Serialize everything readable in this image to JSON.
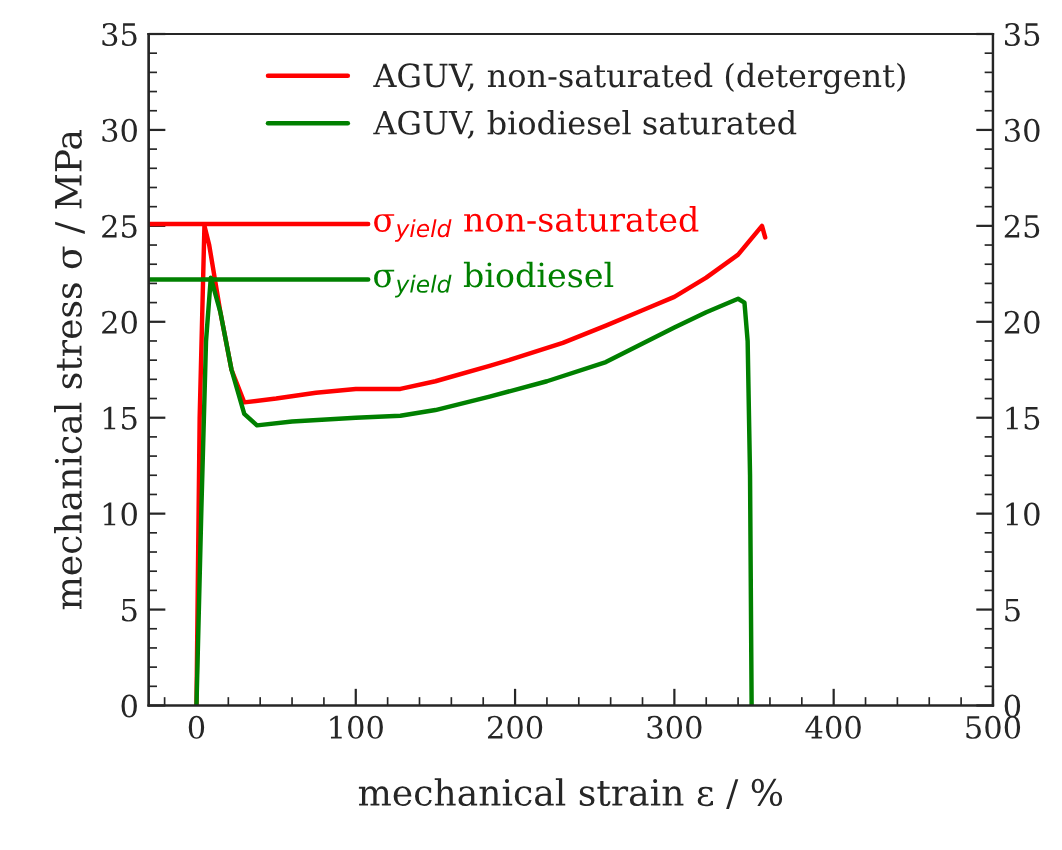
{
  "chart_data": {
    "type": "line",
    "xlabel": "mechanical strain ε / %",
    "ylabel": "mechanical stress σ / MPa",
    "xlim": [
      -30,
      500
    ],
    "xticks": [
      0,
      100,
      200,
      300,
      400,
      500
    ],
    "ylim": [
      0,
      35
    ],
    "yticks": [
      0,
      5,
      10,
      15,
      20,
      25,
      30,
      35
    ],
    "y2lim": [
      0,
      35
    ],
    "y2ticks": [
      0,
      5,
      10,
      15,
      20,
      25,
      30,
      35
    ],
    "grid": false,
    "legend": "top",
    "marker": "none",
    "line_style": "solid",
    "series": [
      {
        "name": "AGUV, non-saturated (detergent)",
        "color": "#ff0000",
        "x": [
          0,
          2,
          5,
          8,
          15,
          22,
          30,
          50,
          75,
          100,
          128,
          150,
          184,
          200,
          230,
          257,
          280,
          300,
          320,
          340,
          355,
          357
        ],
        "values": [
          0,
          15,
          25,
          24,
          20.5,
          17.5,
          15.8,
          16.0,
          16.3,
          16.5,
          16.5,
          16.9,
          17.7,
          18.1,
          18.9,
          19.8,
          20.6,
          21.3,
          22.3,
          23.5,
          25,
          24.4
        ]
      },
      {
        "name": "AGUV, biodiesel saturated",
        "color": "#008000",
        "x": [
          0,
          3,
          6,
          9,
          15,
          22,
          30,
          38,
          60,
          100,
          128,
          150,
          184,
          220,
          257,
          300,
          320,
          340,
          344,
          346,
          347.5,
          348.5
        ],
        "values": [
          0,
          10,
          19,
          22.3,
          20.5,
          17.5,
          15.2,
          14.6,
          14.8,
          15.0,
          15.1,
          15.4,
          16.1,
          16.9,
          17.9,
          19.7,
          20.5,
          21.2,
          21.0,
          19,
          12,
          0
        ]
      }
    ],
    "ref_lines": [
      {
        "axis": "y",
        "value": 25.1,
        "label": "σ$_{yield}$ non-saturated",
        "color": "#ff0000"
      },
      {
        "axis": "y",
        "value": 22.2,
        "label": "σ$_{yield}$ biodiesel",
        "color": "#008000"
      }
    ]
  }
}
